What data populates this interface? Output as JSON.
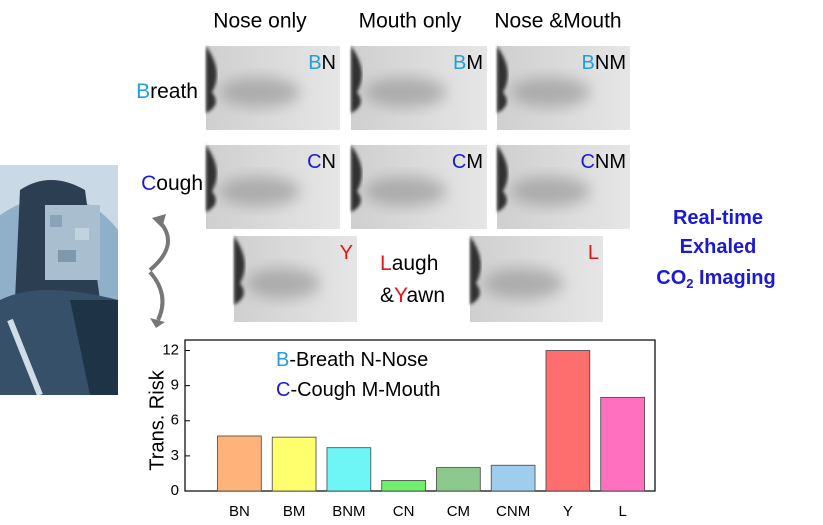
{
  "column_headers": [
    "Nose only",
    "Mouth only",
    "Nose &Mouth"
  ],
  "row_labels": [
    [
      [
        {
          "text": "B",
          "color": "#1f9fe0"
        },
        {
          "text": "reath",
          "color": "#000000"
        }
      ]
    ],
    [
      [
        {
          "text": "C",
          "color": "#1a1adb"
        },
        {
          "text": "ough",
          "color": "#000000"
        }
      ]
    ],
    [
      [
        {
          "text": "L",
          "color": "#e81414"
        },
        {
          "text": "augh",
          "color": "#000000"
        }
      ],
      [
        {
          "text": "&",
          "color": "#000000"
        },
        {
          "text": "Y",
          "color": "#e81414"
        },
        {
          "text": "awn",
          "color": "#000000"
        }
      ]
    ]
  ],
  "panels": [
    [
      {
        "text": "B",
        "color": "#1f9fe0"
      },
      {
        "text": "N",
        "color": "#000000"
      }
    ],
    [
      {
        "text": "B",
        "color": "#1f9fe0"
      },
      {
        "text": "M",
        "color": "#000000"
      }
    ],
    [
      {
        "text": "B",
        "color": "#1f9fe0"
      },
      {
        "text": "NM",
        "color": "#000000"
      }
    ],
    [
      {
        "text": "C",
        "color": "#1a1adb"
      },
      {
        "text": "N",
        "color": "#000000"
      }
    ],
    [
      {
        "text": "C",
        "color": "#1a1adb"
      },
      {
        "text": "M",
        "color": "#000000"
      }
    ],
    [
      {
        "text": "C",
        "color": "#1a1adb"
      },
      {
        "text": "NM",
        "color": "#000000"
      }
    ],
    [
      {
        "text": "Y",
        "color": "#e81414"
      }
    ],
    [
      {
        "text": "L",
        "color": "#e81414"
      }
    ]
  ],
  "callout": [
    [
      {
        "text": "Real-time",
        "color": "#1a1ad6"
      }
    ],
    [
      {
        "text": "Exhaled",
        "color": "#1a1ad6"
      }
    ],
    [
      {
        "text": "CO",
        "color": "#1a1ad6"
      },
      {
        "text": "2",
        "color": "#1a1ad6",
        "sub": true
      },
      {
        "text": " Imaging",
        "color": "#1a1ad6"
      }
    ]
  ],
  "chart_data": {
    "type": "bar",
    "ylabel": "Trans. Risk",
    "categories": [
      "BN",
      "BM",
      "BNM",
      "CN",
      "CM",
      "CNM",
      "Y",
      "L"
    ],
    "values": [
      4.7,
      4.6,
      3.7,
      0.9,
      2.0,
      2.2,
      12.0,
      8.0
    ],
    "colors": [
      "#ffb37a",
      "#ffff6e",
      "#6ef6f6",
      "#6ef06e",
      "#8cc98c",
      "#9fcdee",
      "#ff6e6e",
      "#ff70bf"
    ],
    "ylim": [
      0,
      12.9
    ],
    "yticks": [
      0,
      3,
      6,
      9,
      12
    ],
    "annotations": [
      [
        {
          "text": "B",
          "color": "#1f9fe0"
        },
        {
          "text": "-Breath   N-Nose",
          "color": "#000000"
        }
      ],
      [
        {
          "text": "C",
          "color": "#1a1adb"
        },
        {
          "text": "-Cough   M-Mouth",
          "color": "#000000"
        }
      ]
    ]
  }
}
